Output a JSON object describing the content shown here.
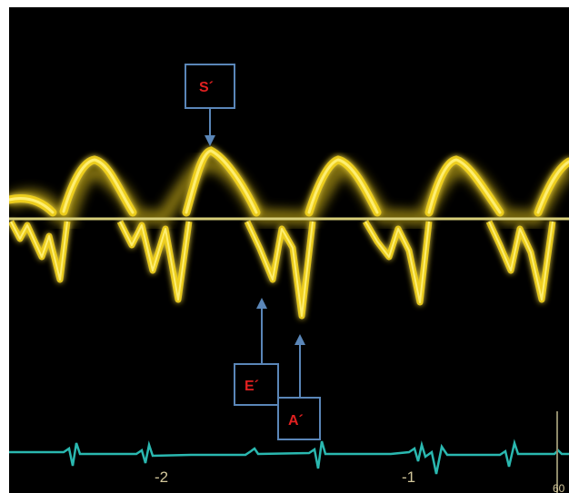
{
  "labels": {
    "s_prime": "S´",
    "e_prime": "E´",
    "a_prime": "A´"
  },
  "axis": {
    "tick_neg2": "-2",
    "tick_neg1": "-1",
    "corner_text": "60"
  },
  "colors": {
    "background": "#000000",
    "doppler_signal": "#f2d21a",
    "baseline": "#d8cf7a",
    "ecg_trace": "#2ab8b0",
    "annotation_box": "#5a86b8",
    "annotation_text": "#e02020",
    "axis_text": "#d2c69a"
  }
}
